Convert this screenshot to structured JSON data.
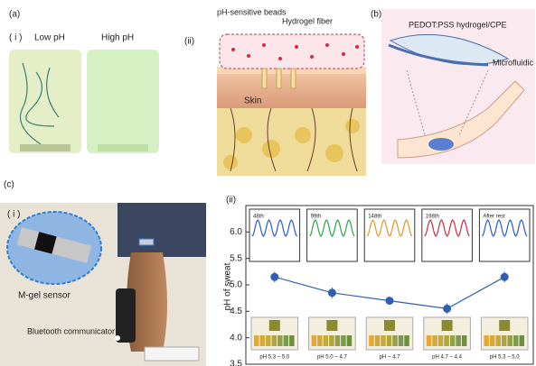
{
  "panel_a": {
    "label": "(a)",
    "i_label": "( i )",
    "low": "Low pH",
    "high": "High pH",
    "ii_label": "(ii)",
    "beads": "pH-sensitive beads",
    "fiber": "Hydrogel fiber",
    "skin": "Skin"
  },
  "panel_b": {
    "label": "(b)",
    "hydrogel": "PEDOT:PSS hydrogel/CPE",
    "device": "Microfluidic device"
  },
  "panel_c": {
    "label": "(c)",
    "i_label": "( i )",
    "sensor": "M-gel sensor",
    "bt": "Bluetooth communicator",
    "ii_label": "(ii)",
    "insets": [
      "48th",
      "99th",
      "148th",
      "198th",
      "After rest"
    ]
  },
  "chart_data": {
    "type": "line",
    "ylabel": "pH of sweat",
    "categories": [
      "pH 5.3 ~ 5.0",
      "pH 5.0 ~ 4.7",
      "pH ~ 4.7",
      "pH 4.7 ~ 4.4",
      "pH 5.3 ~ 5.0"
    ],
    "values": [
      5.15,
      4.85,
      4.7,
      4.55,
      5.15
    ],
    "errors": [
      0.1,
      0.1,
      0.05,
      0.1,
      0.1
    ],
    "color": "#2f5fb3",
    "ylim": [
      3.5,
      6.5
    ],
    "yticks": [
      3.5,
      {
        "value": 4,
        "label": "4.0"
      },
      4.5,
      {
        "value": 5,
        "label": "5.0"
      },
      5.5,
      {
        "value": 6,
        "label": "6.0"
      }
    ]
  }
}
